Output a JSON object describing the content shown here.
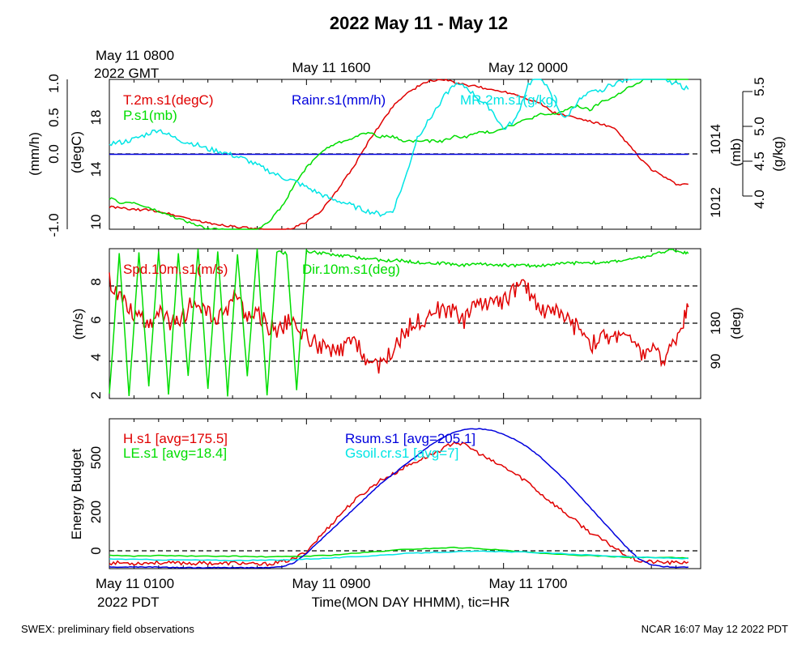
{
  "title": "2022 May 11 - May 12",
  "footer": {
    "left": "SWEX: preliminary field observations",
    "right": "NCAR 16:07 May 12 2022 PDT"
  },
  "top_axis": {
    "first_label_line1": "May 11 0800",
    "first_label_line2": "2022 GMT",
    "label2": "May 11 1600",
    "label3": "May 12 0000"
  },
  "bottom_axis": {
    "first_label_line1": "May 11 0100",
    "first_label_line2": "2022 PDT",
    "label2": "May 11 0900",
    "label3": "May 11 1700",
    "xlabel": "Time(MON DAY HHMM), tic=HR"
  },
  "colors": {
    "red": "#e00000",
    "green": "#00dd00",
    "blue": "#0000dd",
    "cyan": "#00e5e5"
  },
  "chart_data": [
    {
      "type": "line",
      "panel": "state",
      "x_unit": "hours since May 11 0100 PDT",
      "xlim": [
        0,
        24
      ],
      "axes": {
        "rain": {
          "label": "(mm/h)",
          "ticks": [
            "-1.0",
            "0.0",
            "0.5",
            "1.0"
          ],
          "lim": [
            -1.0,
            1.0
          ]
        },
        "temp": {
          "label": "(degC)",
          "ticks": [
            "10",
            "14",
            "18"
          ],
          "lim": [
            10,
            20
          ]
        },
        "pres": {
          "label": "(mb)",
          "ticks": [
            "1012",
            "1014"
          ],
          "lim": [
            1011.6,
            1015.0
          ]
        },
        "mr": {
          "label": "(g/kg)",
          "ticks": [
            "4.0",
            "4.5",
            "5.0",
            "5.5"
          ],
          "lim": [
            4.0,
            5.5
          ]
        }
      },
      "series": [
        {
          "name": "T.2m.s1(degC)",
          "color": "red",
          "axis": "temp",
          "x": [
            0,
            0.5,
            1,
            1.5,
            2,
            2.5,
            3,
            3.5,
            4,
            4.5,
            5,
            5.5,
            6,
            6.5,
            7,
            7.5,
            8,
            8.5,
            9,
            9.5,
            10,
            10.5,
            11,
            11.5,
            12,
            12.5,
            13,
            13.5,
            14,
            14.5,
            15,
            15.5,
            16,
            16.5,
            17,
            17.5,
            18,
            18.5,
            19,
            19.5,
            20,
            20.5,
            21,
            21.5,
            22,
            22.5,
            23,
            23.5
          ],
          "values": [
            11.5,
            11.4,
            11.3,
            11.3,
            11.2,
            11.0,
            10.8,
            10.6,
            10.4,
            10.3,
            10.2,
            10.1,
            10.0,
            9.9,
            9.9,
            10.1,
            10.5,
            11.1,
            12.0,
            13.2,
            14.4,
            15.8,
            17.0,
            18.2,
            19.0,
            19.5,
            19.9,
            20.0,
            19.8,
            19.6,
            19.5,
            19.3,
            19.2,
            19.0,
            18.7,
            18.4,
            17.8,
            17.6,
            17.4,
            17.2,
            17.0,
            16.7,
            15.8,
            14.8,
            14.0,
            13.5,
            13.0,
            13.0
          ]
        },
        {
          "name": "Rainr.s1(mm/h)",
          "color": "blue",
          "axis": "rain",
          "x": [
            0,
            23.5
          ],
          "values": [
            0.0,
            0.0
          ]
        },
        {
          "name": "P.s1(mb)",
          "color": "green",
          "axis": "pres",
          "x": [
            0,
            0.5,
            1,
            1.5,
            2,
            2.5,
            3,
            3.5,
            4,
            4.5,
            5,
            5.5,
            6,
            6.5,
            7,
            7.5,
            8,
            8.5,
            9,
            9.5,
            10,
            10.5,
            11,
            11.5,
            12,
            12.5,
            13,
            13.5,
            14,
            14.5,
            15,
            15.5,
            16,
            16.5,
            17,
            17.5,
            18,
            18.5,
            19,
            19.5,
            20,
            20.5,
            21,
            21.5,
            22,
            22.5,
            23,
            23.5
          ],
          "values": [
            1012.3,
            1012.2,
            1012.2,
            1012.1,
            1012.0,
            1011.9,
            1011.8,
            1011.7,
            1011.6,
            1011.6,
            1011.5,
            1011.5,
            1011.6,
            1011.8,
            1012.1,
            1012.6,
            1013.0,
            1013.3,
            1013.5,
            1013.6,
            1013.7,
            1013.8,
            1013.7,
            1013.7,
            1013.6,
            1013.6,
            1013.6,
            1013.6,
            1013.7,
            1013.7,
            1013.8,
            1013.8,
            1013.9,
            1014.0,
            1014.1,
            1014.2,
            1014.2,
            1014.3,
            1014.4,
            1014.3,
            1014.5,
            1014.6,
            1014.8,
            1014.9,
            1015.2,
            1015.5,
            1015.6,
            1015.6
          ]
        },
        {
          "name": "MR.2m.s1(g/kg)",
          "color": "cyan",
          "axis": "mr",
          "x": [
            0,
            0.5,
            1,
            1.5,
            2,
            2.5,
            3,
            3.5,
            4,
            4.5,
            5,
            5.5,
            6,
            6.5,
            7,
            7.5,
            8,
            8.5,
            9,
            9.5,
            10,
            10.5,
            11,
            11.5,
            12,
            12.5,
            13,
            13.5,
            14,
            14.5,
            15,
            15.5,
            16,
            16.5,
            17,
            17.5,
            18,
            18.5,
            19,
            19.5,
            20,
            20.5,
            21,
            21.5,
            22,
            22.5,
            23,
            23.5
          ],
          "values": [
            4.86,
            4.87,
            4.9,
            4.95,
            5.0,
            4.93,
            4.88,
            4.85,
            4.8,
            4.78,
            4.74,
            4.7,
            4.64,
            4.58,
            4.52,
            4.48,
            4.42,
            4.36,
            4.3,
            4.27,
            4.22,
            4.18,
            4.15,
            4.18,
            4.5,
            4.92,
            5.1,
            5.3,
            5.45,
            5.42,
            5.3,
            5.2,
            5.0,
            5.1,
            5.45,
            5.55,
            5.3,
            5.1,
            5.28,
            5.36,
            5.4,
            5.46,
            5.5,
            5.55,
            5.52,
            5.5,
            5.46,
            5.4
          ]
        }
      ]
    },
    {
      "type": "line",
      "panel": "wind",
      "x_unit": "hours since May 11 0100 PDT",
      "xlim": [
        0,
        24
      ],
      "axes": {
        "spd": {
          "label": "(m/s)",
          "ticks": [
            "2",
            "4",
            "6",
            "8"
          ],
          "lim": [
            1.8,
            10.0
          ]
        },
        "dir": {
          "label": "(deg)",
          "ticks": [
            "90",
            "180"
          ],
          "lim": [
            -7,
            300
          ]
        }
      },
      "series": [
        {
          "name": "Spd.10m.s1(m/s)",
          "color": "red",
          "axis": "spd",
          "x": [
            0,
            0.4,
            0.8,
            1.2,
            1.6,
            2,
            2.4,
            2.8,
            3.2,
            3.6,
            4,
            4.4,
            4.8,
            5.2,
            5.6,
            6,
            6.4,
            6.8,
            7.2,
            7.6,
            8,
            8.4,
            8.8,
            9.2,
            9.6,
            10,
            10.4,
            10.8,
            11.2,
            11.6,
            12,
            12.4,
            12.8,
            13.2,
            13.6,
            14,
            14.4,
            14.8,
            15.2,
            15.6,
            16,
            16.4,
            16.8,
            17.2,
            17.6,
            18,
            18.4,
            18.8,
            19.2,
            19.6,
            20,
            20.4,
            20.8,
            21.2,
            21.6,
            22,
            22.4,
            22.8,
            23.2,
            23.5
          ],
          "values": [
            8.2,
            7.5,
            6.8,
            6.2,
            6.0,
            6.5,
            6.0,
            5.8,
            6.8,
            7.0,
            6.4,
            6.0,
            6.8,
            7.5,
            6.2,
            6.5,
            5.8,
            5.5,
            6.0,
            5.6,
            5.2,
            4.8,
            4.5,
            4.2,
            4.6,
            5.0,
            4.0,
            3.5,
            4.0,
            4.5,
            5.5,
            6.0,
            6.2,
            6.8,
            6.4,
            6.8,
            6.0,
            7.2,
            6.8,
            7.5,
            7.0,
            7.8,
            8.0,
            7.4,
            6.6,
            6.8,
            6.2,
            5.8,
            5.6,
            4.8,
            5.2,
            5.0,
            5.6,
            4.8,
            4.2,
            4.6,
            3.8,
            4.6,
            5.8,
            6.8
          ]
        },
        {
          "name": "Dir.10m.s1(deg)",
          "color": "green",
          "axis": "dir",
          "x": [
            0,
            0.4,
            0.8,
            1.2,
            1.6,
            2,
            2.4,
            2.8,
            3.2,
            3.6,
            4,
            4.4,
            4.8,
            5.2,
            5.6,
            6,
            6.4,
            6.8,
            7.2,
            7.6,
            8,
            8.4,
            8.8,
            9.2,
            9.6,
            10,
            10.4,
            10.8,
            11.2,
            11.6,
            12,
            12.4,
            12.8,
            13.2,
            13.6,
            14,
            14.4,
            14.8,
            15.2,
            15.6,
            16,
            16.4,
            16.8,
            17.2,
            17.6,
            18,
            18.4,
            18.8,
            19.2,
            19.6,
            20,
            20.4,
            20.8,
            21.2,
            21.6,
            22,
            22.4,
            22.8,
            23.2,
            23.5
          ],
          "values": [
            0,
            290,
            0,
            290,
            20,
            295,
            0,
            290,
            40,
            300,
            10,
            295,
            0,
            290,
            40,
            300,
            0,
            295,
            290,
            10,
            295,
            292,
            290,
            285,
            285,
            282,
            280,
            278,
            275,
            276,
            275,
            272,
            272,
            270,
            270,
            268,
            266,
            270,
            268,
            268,
            266,
            266,
            266,
            265,
            266,
            268,
            270,
            270,
            272,
            272,
            270,
            274,
            276,
            278,
            282,
            286,
            292,
            298,
            294,
            290
          ]
        }
      ]
    },
    {
      "type": "line",
      "panel": "energy",
      "x_unit": "hours since May 11 0100 PDT",
      "xlim": [
        0,
        24
      ],
      "ylabel": "Energy Budget",
      "yticks": [
        "0",
        "200",
        "500"
      ],
      "ylim": [
        -60,
        720
      ],
      "series": [
        {
          "name": "H.s1",
          "label_text": "H.s1 [avg=175.5]",
          "color": "red",
          "x": [
            0,
            0.5,
            1,
            1.5,
            2,
            2.5,
            3,
            3.5,
            4,
            4.5,
            5,
            5.5,
            6,
            6.5,
            7,
            7.5,
            8,
            8.5,
            9,
            9.5,
            10,
            10.5,
            11,
            11.5,
            12,
            12.5,
            13,
            13.5,
            14,
            14.5,
            15,
            15.5,
            16,
            16.5,
            17,
            17.5,
            18,
            18.5,
            19,
            19.5,
            20,
            20.5,
            21,
            21.5,
            22,
            22.5,
            23,
            23.5
          ],
          "values": [
            -30,
            -30,
            -32,
            -30,
            -28,
            -32,
            -30,
            -33,
            -30,
            -35,
            -30,
            -32,
            -40,
            -35,
            -25,
            -10,
            30,
            100,
            170,
            240,
            300,
            350,
            400,
            430,
            470,
            500,
            530,
            560,
            600,
            580,
            540,
            500,
            470,
            430,
            390,
            330,
            280,
            230,
            180,
            130,
            90,
            50,
            10,
            -20,
            -25,
            -28,
            -30,
            -25
          ]
        },
        {
          "name": "LE.s1",
          "label_text": "LE.s1 [avg=18.4]",
          "color": "green",
          "x": [
            0,
            1,
            2,
            3,
            4,
            5,
            6,
            7,
            8,
            9,
            10,
            11,
            12,
            13,
            14,
            15,
            16,
            17,
            18,
            19,
            20,
            21,
            22,
            23,
            23.5
          ],
          "values": [
            10,
            5,
            8,
            6,
            4,
            5,
            2,
            2,
            5,
            10,
            20,
            30,
            40,
            45,
            50,
            45,
            35,
            25,
            15,
            10,
            5,
            0,
            -2,
            -3,
            -5
          ]
        },
        {
          "name": "Rsum.s1",
          "label_text": "Rsum.s1 [avg=205.1]",
          "color": "blue",
          "x": [
            0,
            0.5,
            1,
            1.5,
            2,
            2.5,
            3,
            3.5,
            4,
            4.5,
            5,
            5.5,
            6,
            6.5,
            7,
            7.5,
            8,
            8.5,
            9,
            9.5,
            10,
            10.5,
            11,
            11.5,
            12,
            12.5,
            13,
            13.5,
            14,
            14.5,
            15,
            15.5,
            16,
            16.5,
            17,
            17.5,
            18,
            18.5,
            19,
            19.5,
            20,
            20.5,
            21,
            21.5,
            22,
            22.5,
            23,
            23.5
          ],
          "values": [
            -52,
            -52,
            -52,
            -52,
            -52,
            -54,
            -55,
            -55,
            -55,
            -55,
            -55,
            -55,
            -55,
            -55,
            -50,
            -30,
            20,
            80,
            140,
            200,
            260,
            320,
            380,
            430,
            480,
            530,
            580,
            620,
            650,
            665,
            668,
            660,
            640,
            610,
            570,
            520,
            460,
            400,
            330,
            260,
            190,
            120,
            50,
            -10,
            -40,
            -50,
            -52,
            -52
          ]
        },
        {
          "name": "Gsoil.cr.s1",
          "label_text": "Gsoil.cr.s1 [avg=7]",
          "color": "cyan",
          "x": [
            0,
            1,
            2,
            3,
            4,
            5,
            6,
            7,
            8,
            9,
            10,
            11,
            12,
            13,
            14,
            15,
            16,
            17,
            18,
            19,
            20,
            21,
            22,
            23,
            23.5
          ],
          "values": [
            -10,
            -12,
            -14,
            -15,
            -16,
            -17,
            -17,
            -15,
            -10,
            -5,
            2,
            10,
            18,
            24,
            28,
            30,
            28,
            25,
            20,
            14,
            8,
            2,
            -3,
            -6,
            -8
          ]
        }
      ]
    }
  ]
}
